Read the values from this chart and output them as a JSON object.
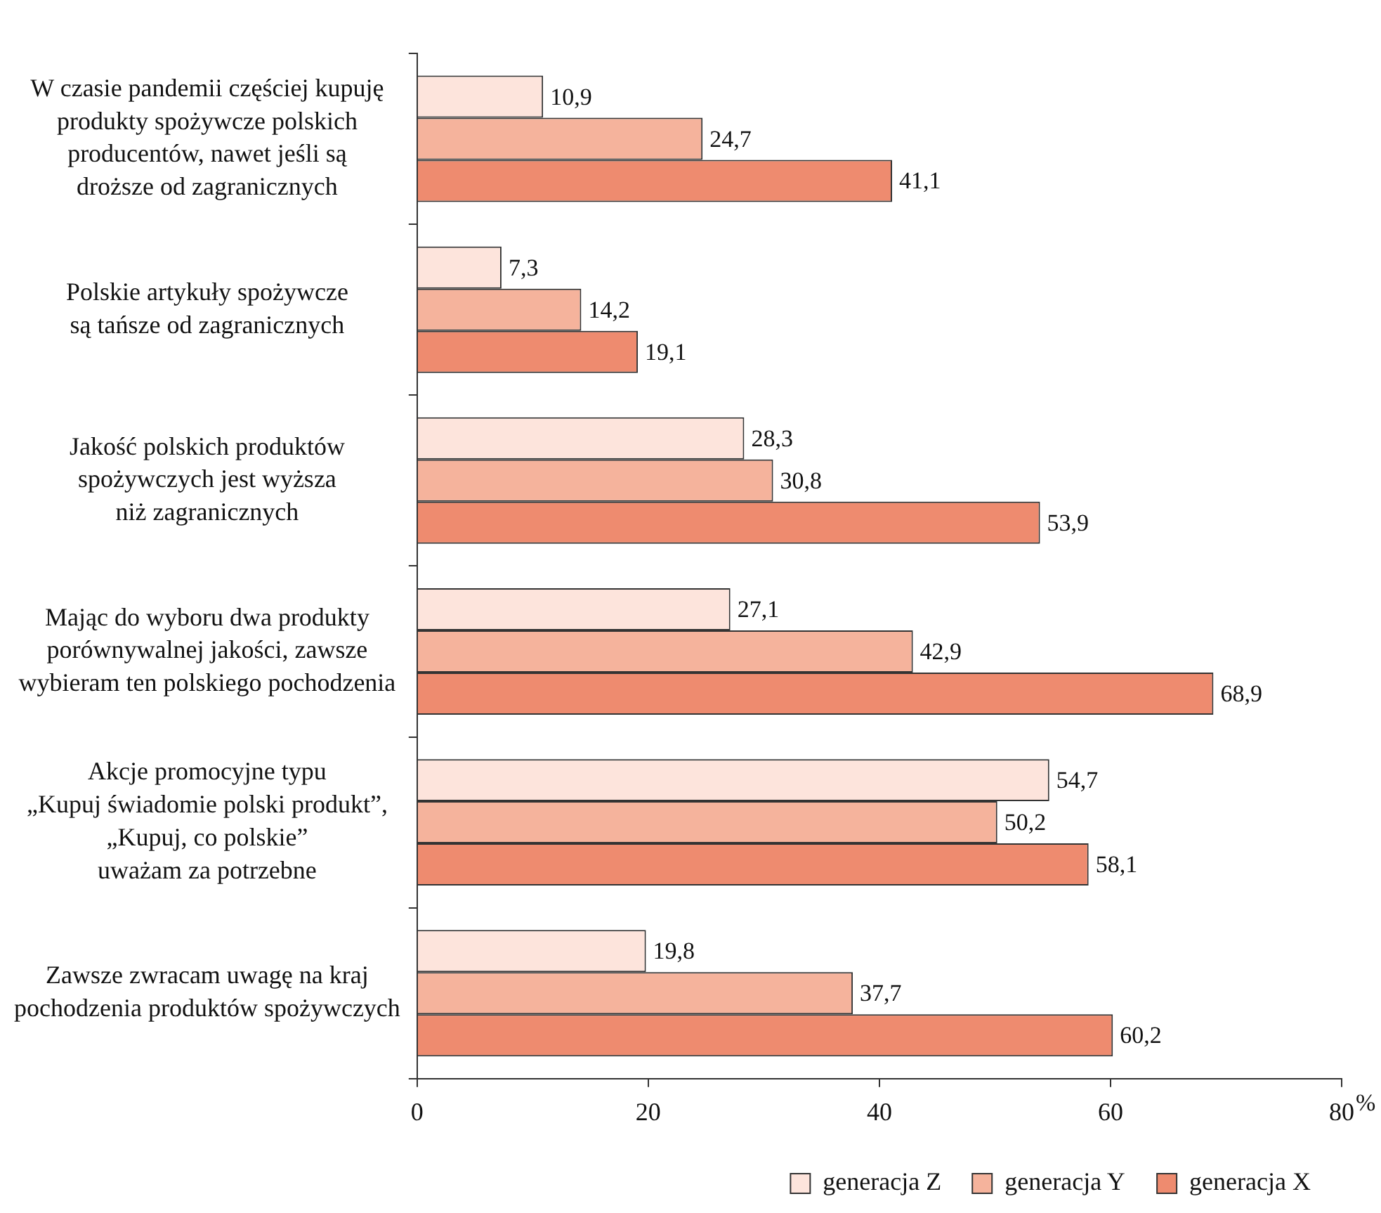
{
  "chart_data": {
    "type": "bar",
    "orientation": "horizontal",
    "xlabel": "%",
    "categories": [
      "W czasie pandemii częściej kupuję\nprodukty spożywcze polskich\nproducentów, nawet jeśli są\ndroższe od zagranicznych",
      "Polskie artykuły spożywcze\nsą tańsze od zagranicznych",
      "Jakość polskich produktów\nspożywczych jest wyższa\nniż zagranicznych",
      "Mając do wyboru dwa produkty\nporównywalnej jakości, zawsze\nwybieram ten polskiego pochodzenia",
      "Akcje promocyjne typu\n„Kupuj świadomie polski produkt”,\n„Kupuj, co polskie”\nuważam za potrzebne",
      "Zawsze zwracam uwagę na kraj\npochodzenia produktów spożywczych"
    ],
    "series": [
      {
        "name": "generacja Z",
        "color": "#fde4dc",
        "values": [
          10.9,
          7.3,
          28.3,
          27.1,
          54.7,
          19.8
        ],
        "value_labels": [
          "10,9",
          "7,3",
          "28,3",
          "27,1",
          "54,7",
          "19,8"
        ]
      },
      {
        "name": "generacja Y",
        "color": "#f5b39c",
        "values": [
          24.7,
          14.2,
          30.8,
          42.9,
          50.2,
          37.7
        ],
        "value_labels": [
          "24,7",
          "14,2",
          "30,8",
          "42,9",
          "50,2",
          "37,7"
        ]
      },
      {
        "name": "generacja X",
        "color": "#ee8b6f",
        "values": [
          41.1,
          19.1,
          53.9,
          68.9,
          58.1,
          60.2
        ],
        "value_labels": [
          "41,1",
          "19,1",
          "53,9",
          "68,9",
          "58,1",
          "60,2"
        ]
      }
    ],
    "xlim": [
      0,
      80
    ],
    "xticks": [
      0,
      20,
      40,
      60,
      80
    ],
    "grid": false,
    "legend": "bottom"
  }
}
